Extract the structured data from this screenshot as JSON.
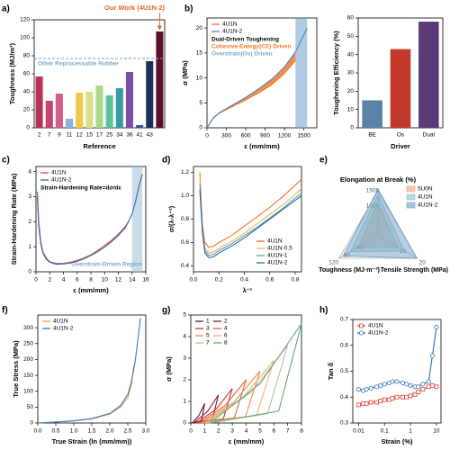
{
  "chart_data": [
    {
      "type": "bar",
      "panel": "a)",
      "ylabel": "Toughness (MJ/m³)",
      "xlabel": "Reference",
      "categories": [
        "2",
        "7",
        "9",
        "11",
        "12",
        "15",
        "17",
        "25",
        "34",
        "36",
        "41",
        "43",
        null
      ],
      "values": [
        57,
        30,
        38,
        10,
        39,
        40,
        47,
        36,
        44,
        62,
        3,
        74,
        107
      ],
      "colors": [
        "#b8325a",
        "#c94470",
        "#d65a8a",
        "#8fb0e6",
        "#f2c84b",
        "#d9e08a",
        "#a8d88a",
        "#5cbf9a",
        "#3a9aa8",
        "#7a4fa8",
        "#3a4e9a",
        "#1e2f5a",
        "#5a0f2a"
      ],
      "ylim": [
        0,
        120
      ],
      "yticks": [
        0,
        20,
        40,
        60,
        80,
        100,
        120
      ],
      "reference_line": {
        "value": 77,
        "label": "Other Reprocessable Rubber",
        "color": "#7aa6c8"
      },
      "annotation": {
        "text": "Our Work (4U1N-2)",
        "color": "#e0662a"
      }
    },
    {
      "type": "line",
      "panel": "b)",
      "ylabel": "σ (MPa)",
      "xlabel": "ε (mm/mm)",
      "xlim": [
        0,
        1700
      ],
      "xticks": [
        0,
        300,
        600,
        900,
        1200,
        1500
      ],
      "ylim": [
        0,
        22
      ],
      "yticks": [
        0,
        5,
        10,
        15,
        20
      ],
      "series": [
        {
          "name": "4U1N",
          "color": "#f07a2a",
          "x": [
            0,
            100,
            200,
            400,
            600,
            800,
            1000,
            1200,
            1370
          ],
          "values": [
            0,
            2,
            3,
            4.3,
            5.6,
            7,
            8.6,
            10.9,
            13.5
          ]
        },
        {
          "name": "4U1N-2",
          "color": "#4a86c5",
          "x": [
            0,
            100,
            200,
            400,
            600,
            800,
            1000,
            1200,
            1370,
            1550
          ],
          "values": [
            0,
            2,
            3.1,
            4.6,
            6.1,
            7.8,
            9.7,
            12.2,
            15.2,
            20
          ]
        }
      ],
      "fill_between": "#f07a2a",
      "shaded_span": [
        1370,
        1550
      ],
      "span_color": "#6f9fc8",
      "legend": "upper left",
      "notes": [
        {
          "text": "Dual-Driven Toughening",
          "color": "#000000"
        },
        {
          "text": "Cohesive-Energy(CE) Driven",
          "color": "#f07a2a"
        },
        {
          "text": "Overstrain(Os) Driven",
          "color": "#7aa6c8"
        }
      ]
    },
    {
      "type": "bar",
      "ylabel": "Toughening Efficiency (%)",
      "xlabel": "Driver",
      "categories": [
        "BE",
        "Os",
        "Dual"
      ],
      "values": [
        15,
        43,
        58
      ],
      "colors": [
        "#5b82a8",
        "#c0392b",
        "#5c3a7a"
      ],
      "ylim": [
        0,
        60
      ],
      "yticks": [
        0,
        10,
        20,
        30,
        40,
        50,
        60
      ]
    },
    {
      "type": "line",
      "panel": "c)",
      "ylabel": "Strain-Hardening Rate (MPa)",
      "xlabel": "ε (mm/mm)",
      "xlim": [
        0,
        16
      ],
      "xticks": [
        0,
        2,
        4,
        6,
        8,
        10,
        12,
        14,
        16
      ],
      "ylim": [
        0,
        4.2
      ],
      "yticks": [
        0,
        1,
        2,
        3,
        4
      ],
      "series": [
        {
          "name": "4U1N",
          "color": "#e0443a",
          "x": [
            0.2,
            0.4,
            0.7,
            1,
            1.5,
            2,
            3,
            4,
            5,
            6,
            7,
            8,
            9,
            10,
            11,
            12,
            13,
            13.5
          ],
          "values": [
            3.2,
            2.0,
            1.2,
            0.8,
            0.55,
            0.4,
            0.33,
            0.34,
            0.38,
            0.45,
            0.55,
            0.68,
            0.85,
            1.05,
            1.25,
            1.5,
            1.8,
            2.0
          ]
        },
        {
          "name": "4U1N-2",
          "color": "#2f6db5",
          "x": [
            0.2,
            0.4,
            0.7,
            1,
            1.5,
            2,
            3,
            4,
            5,
            6,
            7,
            8,
            9,
            10,
            11,
            12,
            13,
            14,
            14.5,
            15,
            15.5
          ],
          "values": [
            3.0,
            1.8,
            1.1,
            0.75,
            0.5,
            0.38,
            0.3,
            0.31,
            0.35,
            0.42,
            0.52,
            0.65,
            0.8,
            0.98,
            1.2,
            1.45,
            1.75,
            2.3,
            2.8,
            3.4,
            3.9
          ]
        }
      ],
      "shaded_span": [
        14,
        15.5
      ],
      "span_color": "#9fbfd6",
      "span_label": "Overstrain-Driven Region",
      "legend": "upper left",
      "notes": [
        {
          "text": "Strain-Hardening Rate=dσ/dε",
          "color": "#000000"
        }
      ]
    },
    {
      "type": "line",
      "panel": "d)",
      "ylabel": "σ/(λ-λ⁻²)",
      "xlabel": "λ⁻¹",
      "xlim": [
        0,
        0.85
      ],
      "xticks": [
        {
          "value": 0,
          "label": "0.0"
        },
        0.2,
        0.4,
        0.6,
        0.8
      ],
      "ylim": [
        0.35,
        1.25
      ],
      "yticks": [
        0.4,
        0.6,
        0.8,
        {
          "value": 1,
          "label": "1.0"
        },
        1.2
      ],
      "series": [
        {
          "name": "4U1N",
          "color": "#e8742a",
          "x": [
            0.05,
            0.07,
            0.09,
            0.12,
            0.16,
            0.2,
            0.3,
            0.4,
            0.5,
            0.6,
            0.7,
            0.8,
            0.85
          ],
          "values": [
            1.2,
            0.75,
            0.6,
            0.56,
            0.57,
            0.6,
            0.66,
            0.74,
            0.82,
            0.9,
            0.99,
            1.09,
            1.14
          ]
        },
        {
          "name": "4U1N-0.5",
          "color": "#f4b24a",
          "x": [
            0.05,
            0.07,
            0.09,
            0.12,
            0.16,
            0.2,
            0.3,
            0.4,
            0.5,
            0.6,
            0.7,
            0.8,
            0.85
          ],
          "values": [
            1.15,
            0.72,
            0.55,
            0.51,
            0.52,
            0.55,
            0.61,
            0.68,
            0.76,
            0.84,
            0.92,
            1.01,
            1.06
          ]
        },
        {
          "name": "4U1N-1",
          "color": "#4aa3b5",
          "x": [
            0.05,
            0.07,
            0.09,
            0.12,
            0.16,
            0.2,
            0.3,
            0.4,
            0.5,
            0.6,
            0.7,
            0.8,
            0.85
          ],
          "values": [
            1.1,
            0.7,
            0.53,
            0.49,
            0.5,
            0.53,
            0.59,
            0.66,
            0.73,
            0.81,
            0.89,
            0.98,
            1.02
          ]
        },
        {
          "name": "4U1N-2",
          "color": "#3366a8",
          "x": [
            0.05,
            0.07,
            0.09,
            0.12,
            0.16,
            0.2,
            0.3,
            0.4,
            0.5,
            0.6,
            0.7,
            0.8,
            0.85
          ],
          "values": [
            1.05,
            0.68,
            0.51,
            0.47,
            0.48,
            0.51,
            0.57,
            0.64,
            0.72,
            0.8,
            0.88,
            0.96,
            1.0
          ]
        }
      ],
      "legend": "lower right"
    },
    {
      "type": "radar",
      "panel": "e)",
      "axes": [
        {
          "name": "Elongation at Break (%)",
          "max": 1500,
          "ticks": [
            1000,
            1500
          ]
        },
        {
          "name": "Toughness (MJ·m⁻³)",
          "max": 120,
          "ticks": [
            40,
            80,
            120
          ]
        },
        {
          "name": "Tensile Strength (MPa)",
          "max": 20,
          "ticks": [
            10,
            20
          ]
        }
      ],
      "series": [
        {
          "name": "5U0N",
          "color": "#f2a27a",
          "values": [
            1100,
            60,
            10
          ]
        },
        {
          "name": "4U1N",
          "color": "#8cc3c8",
          "values": [
            1370,
            85,
            13.5
          ]
        },
        {
          "name": "4U1N-2",
          "color": "#6f9fc8",
          "values": [
            1550,
            107,
            20
          ]
        }
      ]
    },
    {
      "type": "line",
      "panel": "f)",
      "ylabel": "True Stress (MPa)",
      "xlabel": "True Strain (ln (mm/mm))",
      "xlim": [
        0,
        3
      ],
      "xticks": [
        {
          "value": 0,
          "label": "0.0"
        },
        0.5,
        {
          "value": 1,
          "label": "1.0"
        },
        1.5,
        {
          "value": 2,
          "label": "2.0"
        },
        2.5,
        {
          "value": 3,
          "label": "3.0"
        }
      ],
      "ylim": [
        0,
        340
      ],
      "yticks": [
        0,
        50,
        100,
        150,
        200,
        250,
        300
      ],
      "series": [
        {
          "name": "4U1N",
          "color": "#f0a04a",
          "x": [
            0,
            0.5,
            1,
            1.5,
            2,
            2.3,
            2.5,
            2.6,
            2.65,
            2.7
          ],
          "values": [
            0,
            3,
            7,
            13,
            28,
            50,
            80,
            120,
            170,
            190
          ]
        },
        {
          "name": "4U1N-2",
          "color": "#3a78c0",
          "x": [
            0,
            0.5,
            1,
            1.5,
            2,
            2.3,
            2.5,
            2.6,
            2.7,
            2.8,
            2.85
          ],
          "values": [
            0,
            3,
            7,
            14,
            30,
            55,
            90,
            130,
            190,
            280,
            330
          ]
        }
      ],
      "legend": "upper left"
    },
    {
      "type": "line",
      "panel": "g)",
      "ylabel": "σ (MPa)",
      "xlabel": "ε (mm/mm)",
      "xlim": [
        0,
        8
      ],
      "xticks": [
        0,
        1,
        2,
        3,
        4,
        5,
        6,
        7,
        8
      ],
      "ylim": [
        0,
        5
      ],
      "yticks": [
        0,
        1,
        2,
        3,
        4,
        5
      ],
      "series": [
        {
          "name": "1",
          "color": "#5b1a3a",
          "x": [
            0.1,
            0.6,
            1,
            0.78,
            0.1
          ],
          "values": [
            0,
            0.36,
            0.9,
            0.11,
            0
          ]
        },
        {
          "name": "2",
          "color": "#8b1a2b",
          "x": [
            0.2,
            1.19,
            2,
            1.55,
            0.2
          ],
          "values": [
            0,
            0.52,
            1.3,
            0.16,
            0
          ]
        },
        {
          "name": "3",
          "color": "#c0392b",
          "x": [
            0.4,
            1.83,
            3,
            2.35,
            0.4
          ],
          "values": [
            0,
            0.64,
            1.6,
            0.19,
            0
          ]
        },
        {
          "name": "4",
          "color": "#e0603a",
          "x": [
            0.6,
            2.47,
            4,
            3.15,
            0.6
          ],
          "values": [
            0,
            0.8,
            2,
            0.24,
            0
          ]
        },
        {
          "name": "5",
          "color": "#f08a4b",
          "x": [
            0.8,
            3.11,
            5,
            3.95,
            0.8
          ],
          "values": [
            0,
            0.96,
            2.4,
            0.29,
            0
          ]
        },
        {
          "name": "6",
          "color": "#f5b06b",
          "x": [
            1,
            3.75,
            6,
            4.75,
            1
          ],
          "values": [
            0,
            1.16,
            2.9,
            0.35,
            0
          ]
        },
        {
          "name": "7",
          "color": "#a8c99a",
          "x": [
            1.2,
            4.39,
            7,
            5.55,
            1.2
          ],
          "values": [
            0,
            1.44,
            3.6,
            0.43,
            0
          ]
        },
        {
          "name": "8",
          "color": "#6aa87a",
          "x": [
            1.4,
            5.03,
            8,
            6.35,
            1.4
          ],
          "values": [
            0,
            1.84,
            4.6,
            0.55,
            0
          ]
        }
      ],
      "legend": "upper left",
      "legend_columns": 2
    },
    {
      "type": "line",
      "panel": "h)",
      "ylabel": "Tan δ",
      "xlabel": "Strain (%)",
      "xscale": "log",
      "xlim": [
        0.006,
        15
      ],
      "xticks": [
        0.01,
        0.1,
        1,
        10
      ],
      "ylim": [
        0.3,
        0.7
      ],
      "yticks": [
        0.3,
        0.4,
        0.5,
        0.6,
        0.7
      ],
      "series": [
        {
          "name": "4U1N",
          "color": "#e0443a",
          "marker": "square",
          "x": [
            0.01,
            0.015,
            0.02,
            0.03,
            0.05,
            0.07,
            0.1,
            0.15,
            0.2,
            0.3,
            0.5,
            0.7,
            1,
            1.5,
            2,
            3,
            5,
            7,
            10
          ],
          "values": [
            0.37,
            0.375,
            0.375,
            0.38,
            0.38,
            0.385,
            0.39,
            0.39,
            0.395,
            0.4,
            0.4,
            0.4,
            0.405,
            0.41,
            0.42,
            0.43,
            0.44,
            0.445,
            0.44
          ]
        },
        {
          "name": "4U1N-2",
          "color": "#2f6db5",
          "marker": "circle",
          "x": [
            0.01,
            0.015,
            0.02,
            0.03,
            0.05,
            0.07,
            0.1,
            0.15,
            0.2,
            0.3,
            0.5,
            0.7,
            1,
            1.5,
            2,
            3,
            5,
            7,
            10
          ],
          "values": [
            0.43,
            0.425,
            0.43,
            0.435,
            0.44,
            0.445,
            0.45,
            0.455,
            0.46,
            0.46,
            0.455,
            0.45,
            0.445,
            0.44,
            0.44,
            0.45,
            0.46,
            0.56,
            0.67
          ]
        }
      ],
      "legend": "upper left"
    }
  ]
}
